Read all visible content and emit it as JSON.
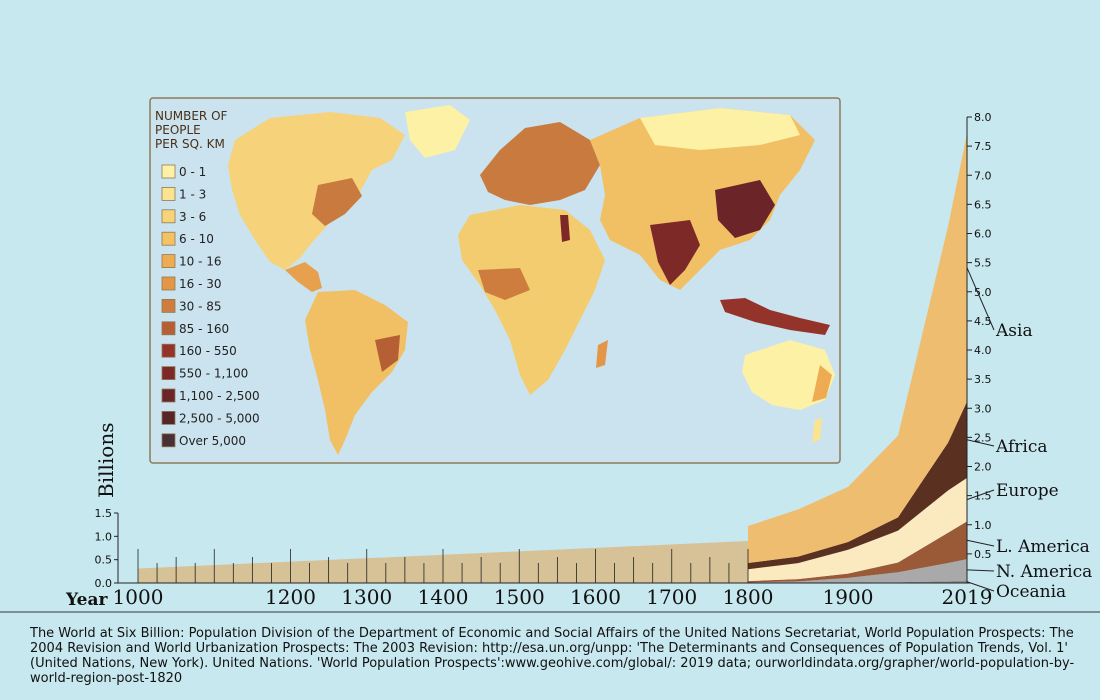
{
  "map": {
    "legend_title_lines": [
      "NUMBER OF",
      "PEOPLE",
      "PER SQ. KM"
    ],
    "legend": [
      {
        "label": "0 - 1",
        "color": "#fdf1a6"
      },
      {
        "label": "1 - 3",
        "color": "#fbe390"
      },
      {
        "label": "3 - 6",
        "color": "#f8d479"
      },
      {
        "label": "6 - 10",
        "color": "#f4c163"
      },
      {
        "label": "10 - 16",
        "color": "#eeab52"
      },
      {
        "label": "16 - 30",
        "color": "#e39646"
      },
      {
        "label": "30 - 85",
        "color": "#cf7c3f"
      },
      {
        "label": "85 - 160",
        "color": "#b65f35"
      },
      {
        "label": "160 - 550",
        "color": "#93332a"
      },
      {
        "label": "550 - 1,100",
        "color": "#7d2928"
      },
      {
        "label": "1,100 - 2,500",
        "color": "#6b2428"
      },
      {
        "label": "2,500 - 5,000",
        "color": "#572427"
      },
      {
        "label": "Over 5,000",
        "color": "#4a2f35"
      }
    ]
  },
  "chart_data": {
    "type": "area",
    "ylabel": "Billions",
    "xlabel": "Year",
    "x_ticks": [
      "1000",
      "1200",
      "1300",
      "1400",
      "1500",
      "1600",
      "1700",
      "1800",
      "1900",
      "2019"
    ],
    "ylim_left": [
      0,
      1.5
    ],
    "y_ticks_left": [
      "0.0",
      "0.5",
      "1.0",
      "1.5"
    ],
    "ylim_right": [
      0,
      8.0
    ],
    "y_ticks_right": [
      "0.5",
      "1.0",
      "1.5",
      "2.0",
      "2.5",
      "3.0",
      "3.5",
      "4.0",
      "4.5",
      "5.0",
      "5.5",
      "6.0",
      "6.5",
      "7.0",
      "7.5",
      "8.0"
    ],
    "world_total_pre1800": {
      "x": [
        1000,
        1800
      ],
      "values": [
        0.31,
        0.9
      ],
      "color": "#d7c196"
    },
    "regions_x": [
      1800,
      1850,
      1900,
      1950,
      2000,
      2019
    ],
    "series": [
      {
        "name": "Oceania",
        "color": "#8a8a8a",
        "values": [
          0.002,
          0.002,
          0.006,
          0.013,
          0.031,
          0.042
        ]
      },
      {
        "name": "N. America",
        "color": "#a9a9a9",
        "values": [
          0.007,
          0.026,
          0.082,
          0.172,
          0.312,
          0.368
        ]
      },
      {
        "name": "L. America",
        "color": "#9a5a38",
        "values": [
          0.024,
          0.038,
          0.074,
          0.167,
          0.52,
          0.648
        ]
      },
      {
        "name": "Europe",
        "color": "#fbeac0",
        "values": [
          0.203,
          0.276,
          0.408,
          0.547,
          0.726,
          0.747
        ]
      },
      {
        "name": "Africa",
        "color": "#5a3020",
        "values": [
          0.107,
          0.111,
          0.133,
          0.228,
          0.818,
          1.308
        ]
      },
      {
        "name": "Asia",
        "color": "#eebd70",
        "values": [
          0.635,
          0.809,
          0.947,
          1.402,
          3.714,
          4.601
        ]
      }
    ]
  },
  "source_text": "The World at Six Billion: Population Division of the Department of Economic and Social Affairs of the United Nations Secretariat, World Population Prospects: The 2004 Revision and World Urbanization Prospects: The 2003 Revision: http://esa.un.org/unpp: 'The Determinants and Consequences of Population Trends, Vol. 1' (United Nations, New York). United Nations. 'World Population Prospects':www.geohive.com/global/: 2019 data; ourworldindata.org/grapher/world-population-by-world-region-post-1820"
}
